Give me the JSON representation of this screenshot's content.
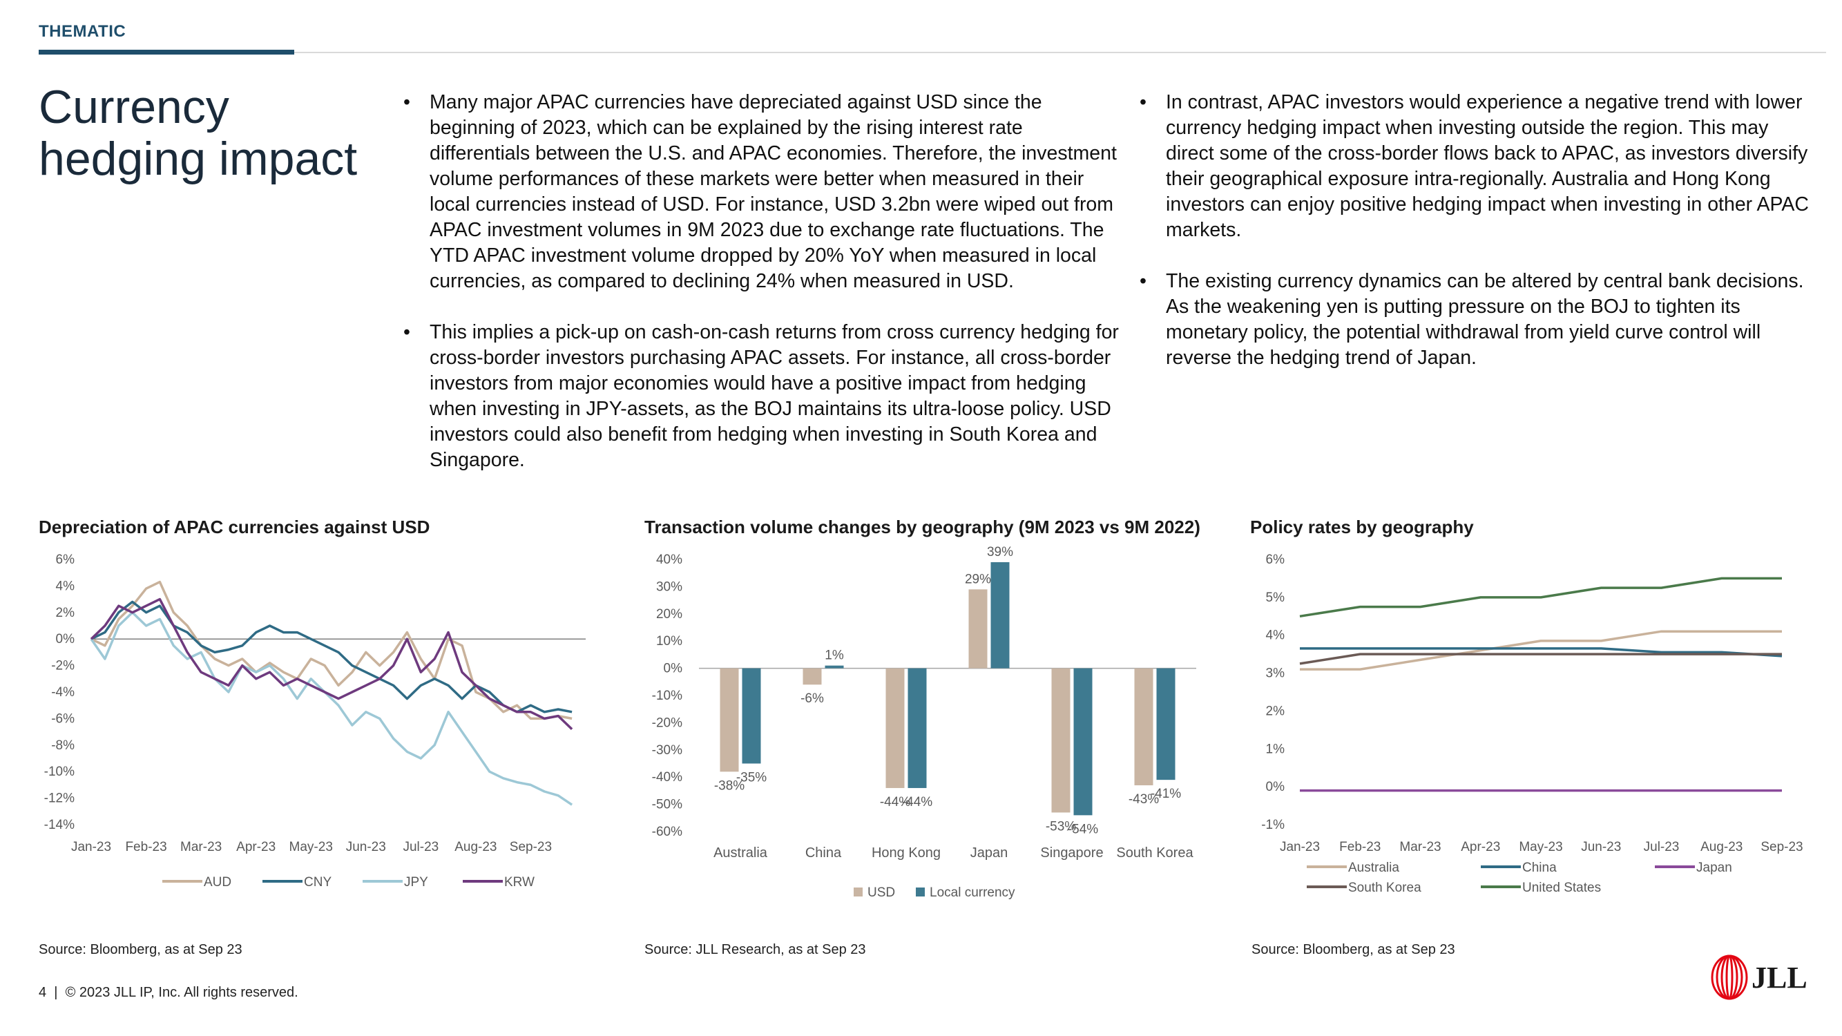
{
  "header": {
    "section": "THEMATIC",
    "title": "Currency hedging impact"
  },
  "bullets_left": [
    "Many major APAC currencies have depreciated against USD since the beginning of 2023, which can be explained by the rising interest rate differentials between the U.S. and APAC economies. Therefore, the investment volume performances of these markets were better when measured in their local currencies instead of USD. For instance, USD 3.2bn were wiped out from APAC investment volumes in 9M 2023 due to exchange rate fluctuations. The YTD APAC investment volume dropped by 20% YoY when measured in local currencies, as compared to declining 24% when measured in USD.",
    "This implies a pick-up on cash-on-cash returns from cross currency hedging for cross-border investors purchasing APAC assets. For instance, all cross-border investors from major economies would have a positive impact from hedging when investing in JPY-assets, as the BOJ maintains its ultra-loose policy. USD investors could also benefit from hedging when investing in South Korea and Singapore."
  ],
  "bullets_right": [
    "In contrast, APAC investors would experience a negative trend with lower currency hedging impact when investing outside the region. This may direct some of the cross-border flows back to APAC, as investors diversify their geographical exposure intra-regionally. Australia and Hong Kong investors can enjoy positive hedging impact when investing in other APAC markets.",
    "The existing currency dynamics can be altered by central bank decisions. As the weakening yen is putting pressure on the BOJ to tighten its monetary policy, the potential withdrawal from yield curve control will reverse the hedging trend of Japan."
  ],
  "chart_data": [
    {
      "type": "line",
      "title": "Depreciation of APAC currencies against USD",
      "xlabel": "",
      "ylabel": "",
      "x_ticks": [
        "Jan-23",
        "Feb-23",
        "Mar-23",
        "Apr-23",
        "May-23",
        "Jun-23",
        "Jul-23",
        "Aug-23",
        "Sep-23"
      ],
      "y_ticks": [
        "6%",
        "4%",
        "2%",
        "0%",
        "-2%",
        "-4%",
        "-6%",
        "-8%",
        "-10%",
        "-12%",
        "-14%"
      ],
      "ylim": [
        -14,
        6
      ],
      "x_range": [
        0,
        9
      ],
      "grid": false,
      "legend_position": "bottom",
      "series": [
        {
          "name": "AUD",
          "color": "#c9b29b",
          "x": [
            0,
            0.25,
            0.5,
            0.75,
            1.0,
            1.25,
            1.5,
            1.75,
            2.0,
            2.25,
            2.5,
            2.75,
            3.0,
            3.25,
            3.5,
            3.75,
            4.0,
            4.25,
            4.5,
            4.75,
            5.0,
            5.25,
            5.5,
            5.75,
            6.0,
            6.25,
            6.5,
            6.75,
            7.0,
            7.25,
            7.5,
            7.75,
            8.0,
            8.25,
            8.5,
            8.75
          ],
          "y": [
            0,
            -0.5,
            1.5,
            2.5,
            3.8,
            4.3,
            2.0,
            1.0,
            -0.5,
            -1.5,
            -2.0,
            -1.5,
            -2.5,
            -1.8,
            -2.5,
            -3.0,
            -1.5,
            -2.0,
            -3.5,
            -2.5,
            -1.0,
            -2.0,
            -1.0,
            0.5,
            -1.5,
            -3.0,
            0.0,
            -0.5,
            -4.0,
            -4.5,
            -5.5,
            -5.0,
            -6.0,
            -6.0,
            -5.8,
            -6.0
          ]
        },
        {
          "name": "CNY",
          "color": "#2f6b85",
          "x": [
            0,
            0.25,
            0.5,
            0.75,
            1.0,
            1.25,
            1.5,
            1.75,
            2.0,
            2.25,
            2.5,
            2.75,
            3.0,
            3.25,
            3.5,
            3.75,
            4.0,
            4.25,
            4.5,
            4.75,
            5.0,
            5.25,
            5.5,
            5.75,
            6.0,
            6.25,
            6.5,
            6.75,
            7.0,
            7.25,
            7.5,
            7.75,
            8.0,
            8.25,
            8.5,
            8.75
          ],
          "y": [
            0,
            0.5,
            2.0,
            2.8,
            2.0,
            2.5,
            1.0,
            0.5,
            -0.5,
            -1.0,
            -0.8,
            -0.5,
            0.5,
            1.0,
            0.5,
            0.5,
            0.0,
            -0.5,
            -1.0,
            -2.0,
            -2.5,
            -3.0,
            -3.5,
            -4.5,
            -3.5,
            -3.0,
            -3.5,
            -4.5,
            -3.5,
            -4.0,
            -5.0,
            -5.5,
            -5.0,
            -5.5,
            -5.3,
            -5.5
          ]
        },
        {
          "name": "JPY",
          "color": "#9dc8d6",
          "x": [
            0,
            0.25,
            0.5,
            0.75,
            1.0,
            1.25,
            1.5,
            1.75,
            2.0,
            2.25,
            2.5,
            2.75,
            3.0,
            3.25,
            3.5,
            3.75,
            4.0,
            4.25,
            4.5,
            4.75,
            5.0,
            5.25,
            5.5,
            5.75,
            6.0,
            6.25,
            6.5,
            6.75,
            7.0,
            7.25,
            7.5,
            7.75,
            8.0,
            8.25,
            8.5,
            8.75
          ],
          "y": [
            0,
            -1.5,
            1.0,
            2.0,
            1.0,
            1.5,
            -0.5,
            -1.5,
            -1.0,
            -3.0,
            -4.0,
            -2.0,
            -2.5,
            -2.0,
            -3.0,
            -4.5,
            -3.0,
            -4.0,
            -5.0,
            -6.5,
            -5.5,
            -6.0,
            -7.5,
            -8.5,
            -9.0,
            -8.0,
            -5.5,
            -7.0,
            -8.5,
            -10.0,
            -10.5,
            -10.8,
            -11.0,
            -11.5,
            -11.8,
            -12.5
          ]
        },
        {
          "name": "KRW",
          "color": "#6e3a7e",
          "x": [
            0,
            0.25,
            0.5,
            0.75,
            1.0,
            1.25,
            1.5,
            1.75,
            2.0,
            2.25,
            2.5,
            2.75,
            3.0,
            3.25,
            3.5,
            3.75,
            4.0,
            4.25,
            4.5,
            4.75,
            5.0,
            5.25,
            5.5,
            5.75,
            6.0,
            6.25,
            6.5,
            6.75,
            7.0,
            7.25,
            7.5,
            7.75,
            8.0,
            8.25,
            8.5,
            8.75
          ],
          "y": [
            0,
            1.0,
            2.5,
            2.0,
            2.5,
            3.0,
            1.0,
            -1.0,
            -2.5,
            -3.0,
            -3.5,
            -2.0,
            -3.0,
            -2.5,
            -3.5,
            -3.0,
            -3.5,
            -4.0,
            -4.5,
            -4.0,
            -3.5,
            -3.0,
            -2.0,
            0.0,
            -2.5,
            -1.5,
            0.5,
            -2.5,
            -3.5,
            -4.5,
            -5.0,
            -5.5,
            -5.5,
            -6.0,
            -5.8,
            -6.8
          ]
        }
      ]
    },
    {
      "type": "bar",
      "title": "Transaction volume changes by geography (9M 2023 vs 9M 2022)",
      "xlabel": "",
      "ylabel": "",
      "categories": [
        "Australia",
        "China",
        "Hong Kong",
        "Japan",
        "Singapore",
        "South Korea"
      ],
      "y_ticks": [
        "40%",
        "30%",
        "20%",
        "10%",
        "0%",
        "-10%",
        "-20%",
        "-30%",
        "-40%",
        "-50%",
        "-60%"
      ],
      "ylim": [
        -60,
        40
      ],
      "grid": false,
      "legend_position": "bottom",
      "series": [
        {
          "name": "USD",
          "color": "#c9b5a3",
          "values": [
            -38,
            -6,
            -44,
            29,
            -53,
            -43
          ],
          "labels": [
            "-38%",
            "-6%",
            "-44%",
            "29%",
            "-53%",
            "-43%"
          ]
        },
        {
          "name": "Local currency",
          "color": "#3e7a90",
          "values": [
            -35,
            1,
            -44,
            39,
            -54,
            -41
          ],
          "labels": [
            "-35%",
            "1%",
            "-44%",
            "39%",
            "-54%",
            "-41%"
          ]
        }
      ]
    },
    {
      "type": "line",
      "title": "Policy rates by geography",
      "xlabel": "",
      "ylabel": "",
      "x_ticks": [
        "Jan-23",
        "Feb-23",
        "Mar-23",
        "Apr-23",
        "May-23",
        "Jun-23",
        "Jul-23",
        "Aug-23",
        "Sep-23"
      ],
      "y_ticks": [
        "6%",
        "5%",
        "4%",
        "3%",
        "2%",
        "1%",
        "0%",
        "-1%"
      ],
      "ylim": [
        -1,
        6
      ],
      "grid": false,
      "legend_position": "bottom",
      "series": [
        {
          "name": "Australia",
          "color": "#c9b29b",
          "values": [
            3.1,
            3.1,
            3.35,
            3.6,
            3.85,
            3.85,
            4.1,
            4.1,
            4.1
          ]
        },
        {
          "name": "China",
          "color": "#2f6b85",
          "values": [
            3.65,
            3.65,
            3.65,
            3.65,
            3.65,
            3.65,
            3.55,
            3.55,
            3.45
          ]
        },
        {
          "name": "Japan",
          "color": "#8a4a9a",
          "values": [
            -0.1,
            -0.1,
            -0.1,
            -0.1,
            -0.1,
            -0.1,
            -0.1,
            -0.1,
            -0.1
          ]
        },
        {
          "name": "South Korea",
          "color": "#6b5a55",
          "values": [
            3.25,
            3.5,
            3.5,
            3.5,
            3.5,
            3.5,
            3.5,
            3.5,
            3.5
          ]
        },
        {
          "name": "United States",
          "color": "#4a7a4a",
          "values": [
            4.5,
            4.75,
            4.75,
            5.0,
            5.0,
            5.25,
            5.25,
            5.5,
            5.5
          ]
        }
      ]
    }
  ],
  "sources": [
    "Source: Bloomberg, as at Sep 23",
    "Source: JLL Research, as at Sep 23",
    "Source: Bloomberg, as at Sep 23"
  ],
  "footer": {
    "page": "4",
    "copyright": "© 2023 JLL IP, Inc. All rights reserved."
  },
  "logo": {
    "text": "JLL",
    "color": "#e30613"
  }
}
